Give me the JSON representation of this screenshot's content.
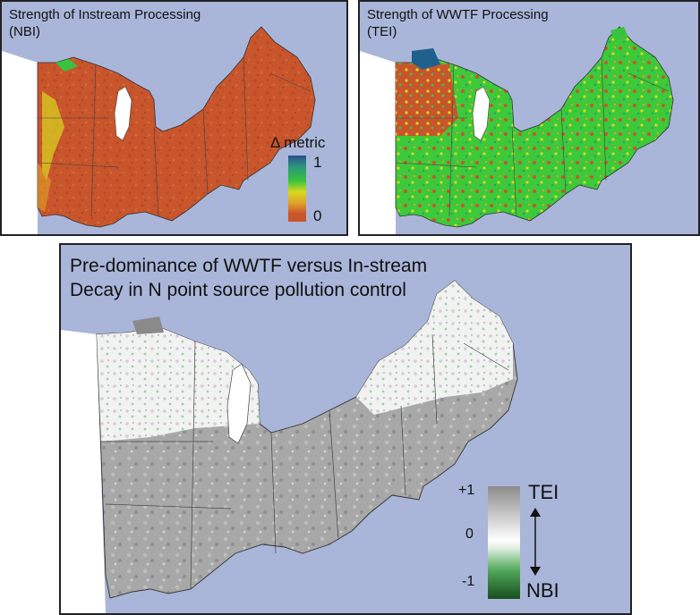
{
  "panel_nbi": {
    "title_line1": "Strength of Instream Processing",
    "title_line2": "(NBI)"
  },
  "panel_tei": {
    "title_line1": "Strength of WWTF Processing",
    "title_line2": "(TEI)"
  },
  "delta_legend": {
    "label": "Δ metric",
    "max_label": "1",
    "min_label": "0",
    "colors": [
      "#2a4e8e",
      "#2c9a7a",
      "#39c23d",
      "#d8d81e",
      "#e0a12a",
      "#c9552b"
    ]
  },
  "panel_main": {
    "title_line1": "Pre-dominance of WWTF versus In-stream",
    "title_line2": "Decay in N point source pollution control"
  },
  "dominance_legend": {
    "top_value": "+1",
    "mid_value": "0",
    "bottom_value": "-1",
    "top_label": "TEI",
    "bottom_label": "NBI",
    "colors": [
      "#8c8c8c",
      "#d6d6d6",
      "#ffffff",
      "#4fa65a",
      "#184d1e"
    ]
  },
  "map_colors": {
    "ocean": "#a9b6d9",
    "land_outside": "#ffffff",
    "nbi_base": "#c8552c",
    "tei_base": "#3cc93a",
    "main_base": "#a8a8a8"
  }
}
